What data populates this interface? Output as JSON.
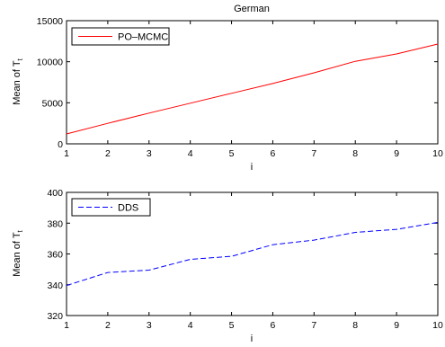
{
  "chart_data": [
    {
      "type": "line",
      "title": "German",
      "xlabel": "i",
      "ylabel": "Mean of T",
      "ylabel_sub": "t",
      "x": [
        1,
        2,
        3,
        4,
        5,
        6,
        7,
        8,
        9,
        10
      ],
      "xlim": [
        1,
        10
      ],
      "ylim": [
        0,
        15000
      ],
      "xticks": [
        1,
        2,
        3,
        4,
        5,
        6,
        7,
        8,
        9,
        10
      ],
      "yticks": [
        0,
        5000,
        10000,
        15000
      ],
      "grid": false,
      "legend_position": "top-left",
      "series": [
        {
          "name": "PO–MCMC",
          "color": "#ff0000",
          "style": "solid",
          "values": [
            1200,
            2500,
            3750,
            4950,
            6150,
            7350,
            8650,
            10050,
            10950,
            12150
          ]
        }
      ]
    },
    {
      "type": "line",
      "title": "",
      "xlabel": "i",
      "ylabel": "Mean of T",
      "ylabel_sub": "t",
      "x": [
        1,
        2,
        3,
        4,
        5,
        6,
        7,
        8,
        9,
        10
      ],
      "xlim": [
        1,
        10
      ],
      "ylim": [
        320,
        400
      ],
      "xticks": [
        1,
        2,
        3,
        4,
        5,
        6,
        7,
        8,
        9,
        10
      ],
      "yticks": [
        320,
        340,
        360,
        380,
        400
      ],
      "grid": false,
      "legend_position": "top-left",
      "series": [
        {
          "name": "DDS",
          "color": "#0000ff",
          "style": "dashed",
          "values": [
            339.5,
            348,
            349.5,
            356.5,
            358.5,
            366,
            369,
            374,
            376,
            380.5
          ]
        }
      ]
    }
  ]
}
